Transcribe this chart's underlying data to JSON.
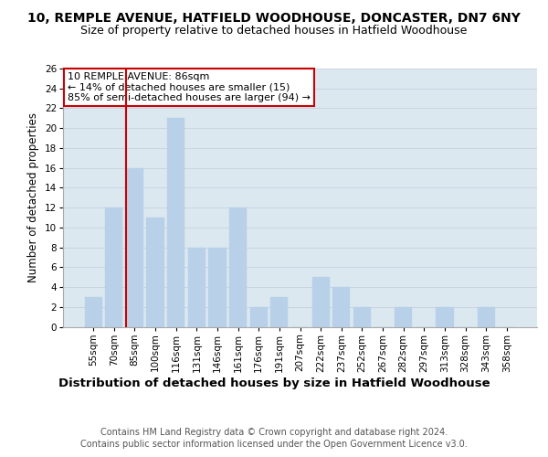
{
  "title": "10, REMPLE AVENUE, HATFIELD WOODHOUSE, DONCASTER, DN7 6NY",
  "subtitle": "Size of property relative to detached houses in Hatfield Woodhouse",
  "xlabel": "Distribution of detached houses by size in Hatfield Woodhouse",
  "ylabel": "Number of detached properties",
  "footer_line1": "Contains HM Land Registry data © Crown copyright and database right 2024.",
  "footer_line2": "Contains public sector information licensed under the Open Government Licence v3.0.",
  "categories": [
    "55sqm",
    "70sqm",
    "85sqm",
    "100sqm",
    "116sqm",
    "131sqm",
    "146sqm",
    "161sqm",
    "176sqm",
    "191sqm",
    "207sqm",
    "222sqm",
    "237sqm",
    "252sqm",
    "267sqm",
    "282sqm",
    "297sqm",
    "313sqm",
    "328sqm",
    "343sqm",
    "358sqm"
  ],
  "values": [
    3,
    12,
    16,
    11,
    21,
    8,
    8,
    12,
    2,
    3,
    0,
    5,
    4,
    2,
    0,
    2,
    0,
    2,
    0,
    2,
    0
  ],
  "bar_color": "#b8d0e8",
  "bar_edge_color": "#b8d0e8",
  "grid_color": "#c8d4e0",
  "background_color": "#dce8f0",
  "vline_x_index": 2,
  "vline_color": "#cc0000",
  "annotation_text_line1": "10 REMPLE AVENUE: 86sqm",
  "annotation_text_line2": "← 14% of detached houses are smaller (15)",
  "annotation_text_line3": "85% of semi-detached houses are larger (94) →",
  "annotation_box_color": "#cc0000",
  "ylim": [
    0,
    26
  ],
  "yticks": [
    0,
    2,
    4,
    6,
    8,
    10,
    12,
    14,
    16,
    18,
    20,
    22,
    24,
    26
  ],
  "title_fontsize": 10,
  "subtitle_fontsize": 9,
  "xlabel_fontsize": 9.5,
  "ylabel_fontsize": 8.5,
  "tick_fontsize": 7.5,
  "footer_fontsize": 7,
  "ann_fontsize": 8
}
